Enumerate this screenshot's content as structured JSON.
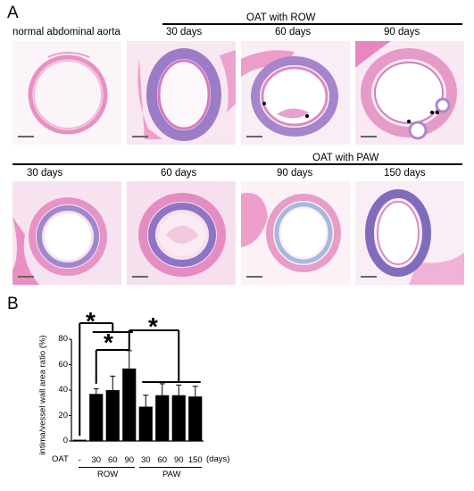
{
  "panel_a": {
    "letter": "A",
    "normal_label": "normal abdominal aorta",
    "row_title": "OAT with ROW",
    "row_days": [
      "30 days",
      "60 days",
      "90 days"
    ],
    "paw_title": "OAT with PAW",
    "paw_days": [
      "30 days",
      "60 days",
      "90 days",
      "150 days"
    ]
  },
  "panel_b": {
    "letter": "B",
    "oat_label": "OAT",
    "days_unit": "(days)",
    "row_group": "ROW",
    "paw_group": "PAW",
    "significance_marker": "*",
    "colors": {
      "bar": "#000000",
      "stain_pink": "#e79ac6",
      "stain_purple": "#8e6fc0"
    }
  },
  "chart_data": {
    "type": "bar",
    "categories": [
      "-",
      "30",
      "60",
      "90",
      "30",
      "60",
      "90",
      "150"
    ],
    "values": [
      1,
      37,
      40,
      57,
      27,
      36,
      36,
      35
    ],
    "errors": [
      0.5,
      4,
      11,
      14,
      9,
      9,
      8,
      8
    ],
    "ylabel": "intima/vessel wall area ratio (%)",
    "xlabel": "(days)",
    "ylim": [
      0,
      80
    ],
    "yticks": [
      0,
      20,
      40,
      60,
      80
    ],
    "groups": [
      {
        "name": "ROW",
        "categories": [
          "30",
          "60",
          "90"
        ]
      },
      {
        "name": "PAW",
        "categories": [
          "30",
          "60",
          "90",
          "150"
        ]
      }
    ],
    "significance": [
      {
        "from": "-",
        "to": "ROW 30-90",
        "label": "*"
      },
      {
        "from": "ROW 30",
        "to": "ROW 90",
        "label": "*"
      },
      {
        "from": "ROW 90",
        "to": "PAW 30-150",
        "label": "*"
      }
    ]
  }
}
